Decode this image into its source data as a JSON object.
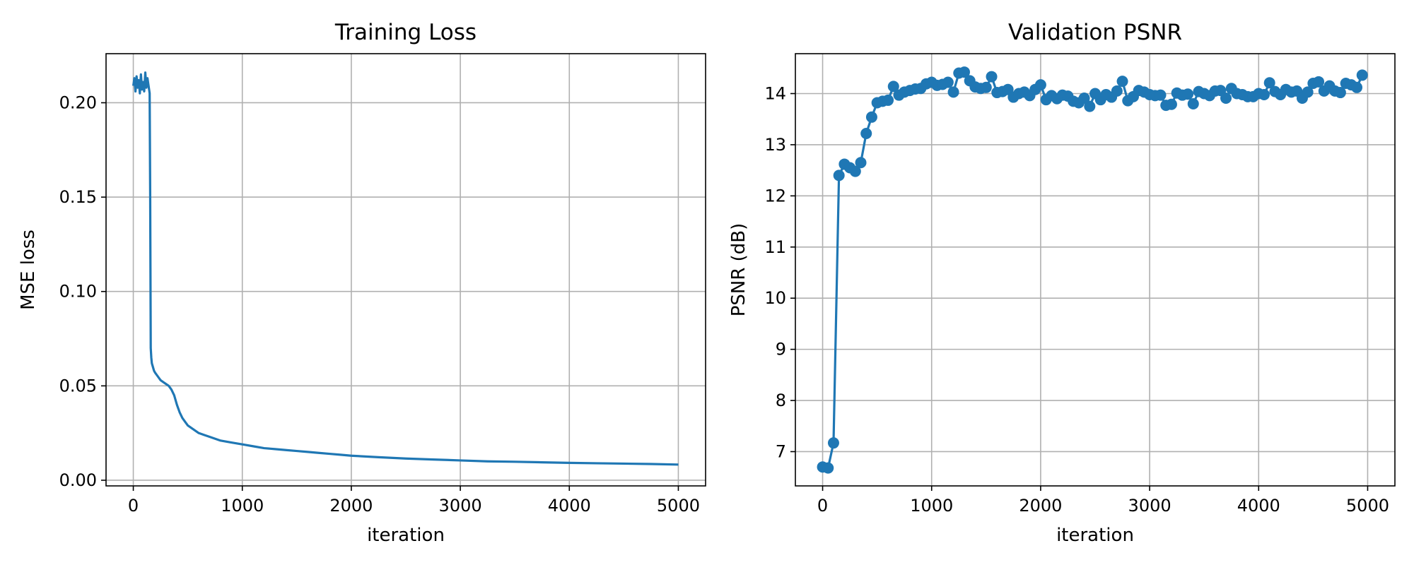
{
  "chart_data": [
    {
      "type": "line",
      "title": "Training Loss",
      "xlabel": "iteration",
      "ylabel": "MSE loss",
      "xlim": [
        -250,
        5250
      ],
      "ylim": [
        -0.003,
        0.226
      ],
      "xticks": [
        0,
        1000,
        2000,
        3000,
        4000,
        5000
      ],
      "xtick_labels": [
        "0",
        "1000",
        "2000",
        "3000",
        "4000",
        "5000"
      ],
      "yticks": [
        0.0,
        0.05,
        0.1,
        0.15,
        0.2
      ],
      "ytick_labels": [
        "0.00",
        "0.05",
        "0.10",
        "0.15",
        "0.20"
      ],
      "grid": true,
      "legend": "none",
      "color": "#1f77b4",
      "series": [
        {
          "x": [
            0,
            10,
            20,
            30,
            40,
            50,
            60,
            70,
            80,
            90,
            100,
            110,
            120,
            130,
            140,
            150,
            155,
            160,
            165,
            170,
            180,
            190,
            200,
            225,
            250,
            275,
            300,
            325,
            350,
            375,
            400,
            425,
            450,
            475,
            500,
            550,
            600,
            650,
            700,
            800,
            900,
            1000,
            1100,
            1200,
            1300,
            1400,
            1500,
            1600,
            1700,
            1800,
            1900,
            2000,
            2250,
            2500,
            2750,
            3000,
            3250,
            3500,
            3750,
            4000,
            4250,
            4500,
            4750,
            5000
          ],
          "y": [
            0.209,
            0.213,
            0.206,
            0.214,
            0.208,
            0.212,
            0.205,
            0.215,
            0.207,
            0.211,
            0.206,
            0.216,
            0.208,
            0.213,
            0.209,
            0.205,
            0.15,
            0.07,
            0.065,
            0.062,
            0.06,
            0.058,
            0.057,
            0.055,
            0.053,
            0.052,
            0.051,
            0.05,
            0.048,
            0.045,
            0.04,
            0.036,
            0.033,
            0.031,
            0.029,
            0.027,
            0.025,
            0.024,
            0.023,
            0.021,
            0.02,
            0.019,
            0.018,
            0.017,
            0.0165,
            0.016,
            0.0155,
            0.015,
            0.0145,
            0.014,
            0.0135,
            0.013,
            0.0122,
            0.0115,
            0.011,
            0.0105,
            0.01,
            0.0098,
            0.0095,
            0.0092,
            0.009,
            0.0088,
            0.0086,
            0.0083
          ]
        }
      ]
    },
    {
      "type": "line",
      "title": "Validation PSNR",
      "xlabel": "iteration",
      "ylabel": "PSNR (dB)",
      "xlim": [
        -250,
        5250
      ],
      "ylim": [
        6.33,
        14.78
      ],
      "xticks": [
        0,
        1000,
        2000,
        3000,
        4000,
        5000
      ],
      "xtick_labels": [
        "0",
        "1000",
        "2000",
        "3000",
        "4000",
        "5000"
      ],
      "yticks": [
        7,
        8,
        9,
        10,
        11,
        12,
        13,
        14
      ],
      "ytick_labels": [
        "7",
        "8",
        "9",
        "10",
        "11",
        "12",
        "13",
        "14"
      ],
      "grid": true,
      "legend": "none",
      "color": "#1f77b4",
      "markers": true,
      "series": [
        {
          "x": [
            0,
            50,
            100,
            150,
            200,
            250,
            300,
            350,
            400,
            450,
            500,
            550,
            600,
            650,
            700,
            750,
            800,
            850,
            900,
            950,
            1000,
            1050,
            1100,
            1150,
            1200,
            1250,
            1300,
            1350,
            1400,
            1450,
            1500,
            1550,
            1600,
            1650,
            1700,
            1750,
            1800,
            1850,
            1900,
            1950,
            2000,
            2050,
            2100,
            2150,
            2200,
            2250,
            2300,
            2350,
            2400,
            2450,
            2500,
            2550,
            2600,
            2650,
            2700,
            2750,
            2800,
            2850,
            2900,
            2950,
            3000,
            3050,
            3100,
            3150,
            3200,
            3250,
            3300,
            3350,
            3400,
            3450,
            3500,
            3550,
            3600,
            3650,
            3700,
            3750,
            3800,
            3850,
            3900,
            3950,
            4000,
            4050,
            4100,
            4150,
            4200,
            4250,
            4300,
            4350,
            4400,
            4450,
            4500,
            4550,
            4600,
            4650,
            4700,
            4750,
            4800,
            4850,
            4900,
            4950
          ],
          "y": [
            6.7,
            6.68,
            7.17,
            12.4,
            12.62,
            12.55,
            12.48,
            12.65,
            13.22,
            13.54,
            13.82,
            13.85,
            13.87,
            14.14,
            13.97,
            14.03,
            14.06,
            14.09,
            14.1,
            14.19,
            14.22,
            14.16,
            14.18,
            14.22,
            14.03,
            14.4,
            14.42,
            14.25,
            14.13,
            14.1,
            14.12,
            14.33,
            14.02,
            14.04,
            14.08,
            13.93,
            14.0,
            14.03,
            13.96,
            14.08,
            14.17,
            13.88,
            13.96,
            13.9,
            13.97,
            13.95,
            13.85,
            13.82,
            13.91,
            13.75,
            14.0,
            13.88,
            13.98,
            13.93,
            14.05,
            14.24,
            13.86,
            13.94,
            14.06,
            14.03,
            13.98,
            13.96,
            13.97,
            13.77,
            13.79,
            14.01,
            13.97,
            13.99,
            13.8,
            14.04,
            14.0,
            13.96,
            14.05,
            14.06,
            13.91,
            14.1,
            14.0,
            13.98,
            13.94,
            13.94,
            14.0,
            13.98,
            14.21,
            14.04,
            13.98,
            14.08,
            14.03,
            14.05,
            13.91,
            14.03,
            14.2,
            14.23,
            14.05,
            14.15,
            14.05,
            14.02,
            14.2,
            14.17,
            14.12,
            14.36
          ]
        }
      ]
    }
  ]
}
